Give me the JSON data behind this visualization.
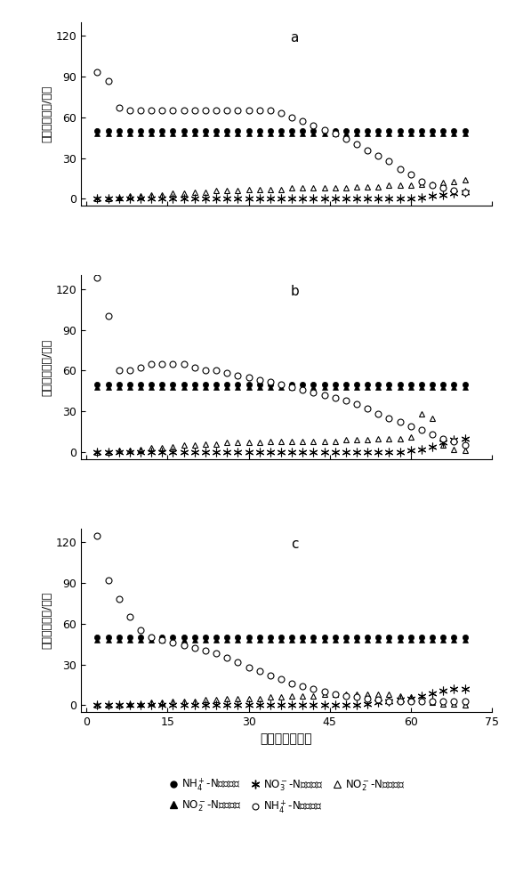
{
  "title_a": "a",
  "title_b": "b",
  "title_c": "c",
  "xlabel": "培养时间（天）",
  "ylabel": "氮浓度（毫克/升）",
  "xlim": [
    -1,
    75
  ],
  "ylim": [
    -5,
    130
  ],
  "yticks": [
    0,
    30,
    60,
    90,
    120
  ],
  "xticks": [
    0,
    15,
    30,
    45,
    60,
    75
  ],
  "NH4_in_a": {
    "x": [
      2,
      4,
      6,
      8,
      10,
      12,
      14,
      16,
      18,
      20,
      22,
      24,
      26,
      28,
      30,
      32,
      34,
      36,
      38,
      40,
      42,
      44,
      46,
      48,
      50,
      52,
      54,
      56,
      58,
      60,
      62,
      64,
      66,
      68,
      70
    ],
    "y": [
      50,
      50,
      50,
      50,
      50,
      50,
      50,
      50,
      50,
      50,
      50,
      50,
      50,
      50,
      50,
      50,
      50,
      50,
      50,
      50,
      50,
      50,
      50,
      50,
      50,
      50,
      50,
      50,
      50,
      50,
      50,
      50,
      50,
      50,
      50
    ]
  },
  "NH4_out_a": {
    "x": [
      2,
      4,
      6,
      8,
      10,
      12,
      14,
      16,
      18,
      20,
      22,
      24,
      26,
      28,
      30,
      32,
      34,
      36,
      38,
      40,
      42,
      44,
      46,
      48,
      50,
      52,
      54,
      56,
      58,
      60,
      62,
      64,
      66,
      68,
      70
    ],
    "y": [
      93,
      87,
      67,
      65,
      65,
      65,
      65,
      65,
      65,
      65,
      65,
      65,
      65,
      65,
      65,
      65,
      65,
      63,
      60,
      57,
      54,
      51,
      48,
      44,
      40,
      36,
      32,
      28,
      22,
      18,
      13,
      10,
      8,
      6,
      5
    ]
  },
  "NO2_in_a": {
    "x": [
      2,
      4,
      6,
      8,
      10,
      12,
      14,
      16,
      18,
      20,
      22,
      24,
      26,
      28,
      30,
      32,
      34,
      36,
      38,
      40,
      42,
      44,
      46,
      48,
      50,
      52,
      54,
      56,
      58,
      60,
      62,
      64,
      66,
      68,
      70
    ],
    "y": [
      48,
      48,
      48,
      48,
      48,
      48,
      48,
      48,
      48,
      48,
      48,
      48,
      48,
      48,
      48,
      48,
      48,
      48,
      48,
      48,
      48,
      48,
      48,
      48,
      48,
      48,
      48,
      48,
      48,
      48,
      48,
      48,
      48,
      48,
      48
    ]
  },
  "NO2_out_a": {
    "x": [
      2,
      4,
      6,
      8,
      10,
      12,
      14,
      16,
      18,
      20,
      22,
      24,
      26,
      28,
      30,
      32,
      34,
      36,
      38,
      40,
      42,
      44,
      46,
      48,
      50,
      52,
      54,
      56,
      58,
      60,
      62,
      64,
      66,
      68,
      70
    ],
    "y": [
      0,
      0,
      1,
      2,
      2,
      3,
      3,
      4,
      4,
      5,
      5,
      6,
      6,
      6,
      7,
      7,
      7,
      7,
      8,
      8,
      8,
      8,
      8,
      8,
      9,
      9,
      9,
      10,
      10,
      10,
      11,
      11,
      12,
      13,
      14
    ]
  },
  "NO3_out_a": {
    "x": [
      2,
      4,
      6,
      8,
      10,
      12,
      14,
      16,
      18,
      20,
      22,
      24,
      26,
      28,
      30,
      32,
      34,
      36,
      38,
      40,
      42,
      44,
      46,
      48,
      50,
      52,
      54,
      56,
      58,
      60,
      62,
      64,
      66,
      68,
      70
    ],
    "y": [
      0,
      0,
      0,
      0,
      0,
      0,
      0,
      0,
      0,
      0,
      0,
      0,
      0,
      0,
      0,
      0,
      0,
      0,
      0,
      0,
      0,
      0,
      0,
      0,
      0,
      0,
      0,
      0,
      0,
      0,
      1,
      2,
      3,
      4,
      5
    ]
  },
  "NH4_in_b": {
    "x": [
      2,
      4,
      6,
      8,
      10,
      12,
      14,
      16,
      18,
      20,
      22,
      24,
      26,
      28,
      30,
      32,
      34,
      36,
      38,
      40,
      42,
      44,
      46,
      48,
      50,
      52,
      54,
      56,
      58,
      60,
      62,
      64,
      66,
      68,
      70
    ],
    "y": [
      50,
      50,
      50,
      50,
      50,
      50,
      50,
      50,
      50,
      50,
      50,
      50,
      50,
      50,
      50,
      50,
      50,
      50,
      50,
      50,
      50,
      50,
      50,
      50,
      50,
      50,
      50,
      50,
      50,
      50,
      50,
      50,
      50,
      50,
      50
    ]
  },
  "NH4_out_b": {
    "x": [
      2,
      4,
      6,
      8,
      10,
      12,
      14,
      16,
      18,
      20,
      22,
      24,
      26,
      28,
      30,
      32,
      34,
      36,
      38,
      40,
      42,
      44,
      46,
      48,
      50,
      52,
      54,
      56,
      58,
      60,
      62,
      64,
      66,
      68,
      70
    ],
    "y": [
      128,
      100,
      60,
      60,
      62,
      65,
      65,
      65,
      65,
      62,
      60,
      60,
      58,
      56,
      55,
      53,
      52,
      50,
      48,
      46,
      44,
      42,
      40,
      38,
      35,
      32,
      28,
      25,
      22,
      19,
      16,
      13,
      10,
      8,
      5
    ]
  },
  "NO2_in_b": {
    "x": [
      2,
      4,
      6,
      8,
      10,
      12,
      14,
      16,
      18,
      20,
      22,
      24,
      26,
      28,
      30,
      32,
      34,
      36,
      38,
      40,
      42,
      44,
      46,
      48,
      50,
      52,
      54,
      56,
      58,
      60,
      62,
      64,
      66,
      68,
      70
    ],
    "y": [
      48,
      48,
      48,
      48,
      48,
      48,
      48,
      48,
      48,
      48,
      48,
      48,
      48,
      48,
      48,
      48,
      48,
      48,
      48,
      48,
      48,
      48,
      48,
      48,
      48,
      48,
      48,
      48,
      48,
      48,
      48,
      48,
      48,
      48,
      48
    ]
  },
  "NO2_out_b": {
    "x": [
      2,
      4,
      6,
      8,
      10,
      12,
      14,
      16,
      18,
      20,
      22,
      24,
      26,
      28,
      30,
      32,
      34,
      36,
      38,
      40,
      42,
      44,
      46,
      48,
      50,
      52,
      54,
      56,
      58,
      60,
      62,
      64,
      66,
      68,
      70
    ],
    "y": [
      0,
      0,
      1,
      1,
      2,
      3,
      3,
      4,
      5,
      5,
      6,
      6,
      7,
      7,
      7,
      7,
      8,
      8,
      8,
      8,
      8,
      8,
      8,
      9,
      9,
      9,
      10,
      10,
      10,
      11,
      28,
      25,
      5,
      2,
      1
    ]
  },
  "NO3_out_b": {
    "x": [
      2,
      4,
      6,
      8,
      10,
      12,
      14,
      16,
      18,
      20,
      22,
      24,
      26,
      28,
      30,
      32,
      34,
      36,
      38,
      40,
      42,
      44,
      46,
      48,
      50,
      52,
      54,
      56,
      58,
      60,
      62,
      64,
      66,
      68,
      70
    ],
    "y": [
      0,
      0,
      0,
      0,
      0,
      0,
      0,
      0,
      0,
      0,
      0,
      0,
      0,
      0,
      0,
      0,
      0,
      0,
      0,
      0,
      0,
      0,
      0,
      0,
      0,
      0,
      0,
      0,
      0,
      1,
      2,
      4,
      7,
      9,
      10
    ]
  },
  "NH4_in_c": {
    "x": [
      2,
      4,
      6,
      8,
      10,
      12,
      14,
      16,
      18,
      20,
      22,
      24,
      26,
      28,
      30,
      32,
      34,
      36,
      38,
      40,
      42,
      44,
      46,
      48,
      50,
      52,
      54,
      56,
      58,
      60,
      62,
      64,
      66,
      68,
      70
    ],
    "y": [
      50,
      50,
      50,
      50,
      50,
      50,
      50,
      50,
      50,
      50,
      50,
      50,
      50,
      50,
      50,
      50,
      50,
      50,
      50,
      50,
      50,
      50,
      50,
      50,
      50,
      50,
      50,
      50,
      50,
      50,
      50,
      50,
      50,
      50,
      50
    ]
  },
  "NH4_out_c": {
    "x": [
      2,
      4,
      6,
      8,
      10,
      12,
      14,
      16,
      18,
      20,
      22,
      24,
      26,
      28,
      30,
      32,
      34,
      36,
      38,
      40,
      42,
      44,
      46,
      48,
      50,
      52,
      54,
      56,
      58,
      60,
      62,
      64,
      66,
      68,
      70
    ],
    "y": [
      125,
      92,
      78,
      65,
      55,
      50,
      48,
      46,
      44,
      42,
      40,
      38,
      35,
      32,
      28,
      25,
      22,
      19,
      16,
      14,
      12,
      10,
      8,
      7,
      6,
      5,
      4,
      3,
      3,
      3,
      3,
      3,
      3,
      3,
      3
    ]
  },
  "NO2_in_c": {
    "x": [
      2,
      4,
      6,
      8,
      10,
      12,
      14,
      16,
      18,
      20,
      22,
      24,
      26,
      28,
      30,
      32,
      34,
      36,
      38,
      40,
      42,
      44,
      46,
      48,
      50,
      52,
      54,
      56,
      58,
      60,
      62,
      64,
      66,
      68,
      70
    ],
    "y": [
      48,
      48,
      48,
      48,
      48,
      48,
      48,
      48,
      48,
      48,
      48,
      48,
      48,
      48,
      48,
      48,
      48,
      48,
      48,
      48,
      48,
      48,
      48,
      48,
      48,
      48,
      48,
      48,
      48,
      48,
      48,
      48,
      48,
      48,
      48
    ]
  },
  "NO2_out_c": {
    "x": [
      2,
      4,
      6,
      8,
      10,
      12,
      14,
      16,
      18,
      20,
      22,
      24,
      26,
      28,
      30,
      32,
      34,
      36,
      38,
      40,
      42,
      44,
      46,
      48,
      50,
      52,
      54,
      56,
      58,
      60,
      62,
      64,
      66,
      68,
      70
    ],
    "y": [
      0,
      0,
      0,
      1,
      1,
      2,
      2,
      3,
      3,
      3,
      4,
      4,
      5,
      5,
      5,
      5,
      6,
      6,
      7,
      7,
      7,
      8,
      8,
      8,
      8,
      8,
      8,
      8,
      7,
      6,
      4,
      2,
      1,
      1,
      0
    ]
  },
  "NO3_out_c": {
    "x": [
      2,
      4,
      6,
      8,
      10,
      12,
      14,
      16,
      18,
      20,
      22,
      24,
      26,
      28,
      30,
      32,
      34,
      36,
      38,
      40,
      42,
      44,
      46,
      48,
      50,
      52,
      54,
      56,
      58,
      60,
      62,
      64,
      66,
      68,
      70
    ],
    "y": [
      0,
      0,
      0,
      0,
      0,
      0,
      0,
      0,
      0,
      0,
      0,
      0,
      0,
      0,
      0,
      0,
      0,
      0,
      0,
      0,
      0,
      0,
      0,
      0,
      0,
      1,
      2,
      3,
      4,
      5,
      7,
      9,
      11,
      12,
      12
    ]
  }
}
